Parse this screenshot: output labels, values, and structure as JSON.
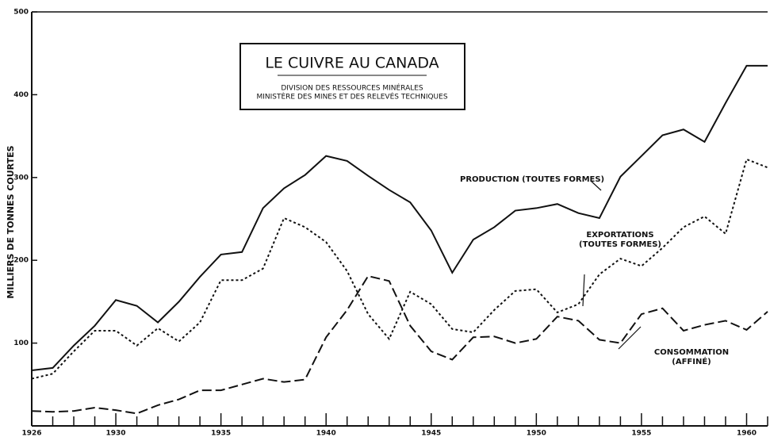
{
  "chart_data": {
    "type": "line",
    "title": "LE CUIVRE AU CANADA",
    "subtitle": [
      "DIVISION DES RESSOURCES MINÉRALES",
      "MINISTÈRE DES MINES ET DES RELEVÉS TECHNIQUES"
    ],
    "y_label": "MILLIERS DE TONNES COURTES",
    "x": [
      1926,
      1927,
      1928,
      1929,
      1930,
      1931,
      1932,
      1933,
      1934,
      1935,
      1936,
      1937,
      1938,
      1939,
      1940,
      1941,
      1942,
      1943,
      1944,
      1945,
      1946,
      1947,
      1948,
      1949,
      1950,
      1951,
      1952,
      1953,
      1954,
      1955,
      1956,
      1957,
      1958,
      1959,
      1960,
      1961
    ],
    "series": [
      {
        "name": [
          "PRODUCTION (TOUTES FORMES)"
        ],
        "color": "#111111",
        "dash": "solid",
        "values": [
          67,
          70,
          97,
          121,
          152,
          145,
          125,
          150,
          180,
          207,
          210,
          263,
          287,
          303,
          326,
          320,
          302,
          285,
          270,
          236,
          185,
          225,
          240,
          260,
          263,
          268,
          257,
          251,
          301,
          326,
          351,
          358,
          343,
          390,
          435,
          435
        ]
      },
      {
        "name": [
          "EXPORTATIONS",
          "(TOUTES FORMES)"
        ],
        "color": "#111111",
        "dash": "dotted",
        "values": [
          57,
          63,
          90,
          115,
          115,
          97,
          118,
          102,
          125,
          176,
          176,
          190,
          251,
          240,
          222,
          187,
          135,
          105,
          162,
          147,
          117,
          113,
          140,
          163,
          165,
          137,
          147,
          183,
          202,
          193,
          215,
          240,
          253,
          232,
          322,
          312
        ]
      },
      {
        "name": [
          "CONSOMMATION",
          "(AFFINÉ)"
        ],
        "color": "#111111",
        "dash": "dashed",
        "values": [
          18,
          17,
          18,
          22,
          19,
          15,
          25,
          32,
          43,
          43,
          50,
          57,
          53,
          56,
          107,
          140,
          181,
          175,
          121,
          90,
          80,
          107,
          108,
          100,
          105,
          132,
          127,
          104,
          100,
          135,
          142,
          115,
          122,
          127,
          116,
          138
        ]
      }
    ],
    "xlim": [
      1926,
      1961
    ],
    "xticks": [
      1926,
      1930,
      1935,
      1940,
      1945,
      1950,
      1955,
      1960
    ],
    "xminorticks": [
      1927,
      1928,
      1929,
      1931,
      1932,
      1933,
      1934,
      1936,
      1937,
      1938,
      1939,
      1941,
      1942,
      1943,
      1944,
      1946,
      1947,
      1948,
      1949,
      1951,
      1952,
      1953,
      1954,
      1956,
      1957,
      1958,
      1959,
      1961
    ],
    "ylim": [
      0,
      500
    ],
    "yticks": [
      100,
      200,
      300,
      400,
      500
    ]
  }
}
